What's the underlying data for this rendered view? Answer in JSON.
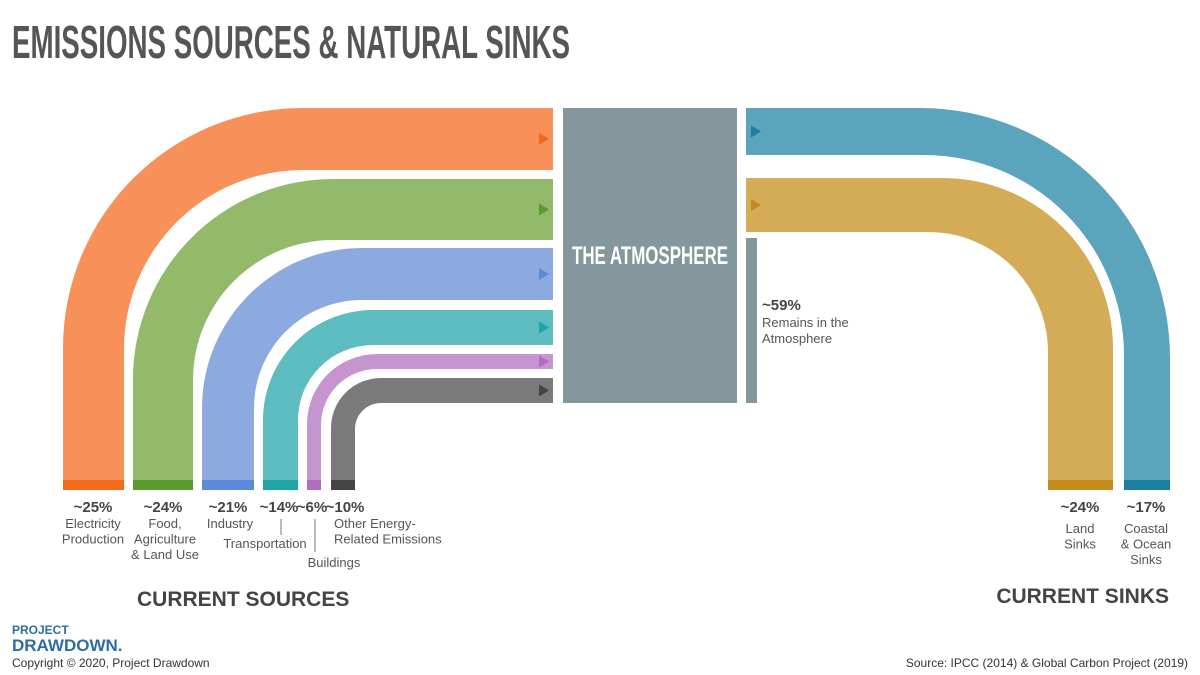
{
  "title": "EMISSIONS SOURCES & NATURAL SINKS",
  "atmosphere": "THE ATMOSPHERE",
  "remains": {
    "value": "~59%",
    "lines": [
      "Remains in the",
      "Atmosphere"
    ]
  },
  "sources": [
    {
      "value": "~25%",
      "lines": [
        "Electricity",
        "Production"
      ]
    },
    {
      "value": "~24%",
      "lines": [
        "Food,",
        "Agriculture",
        "& Land Use"
      ]
    },
    {
      "value": "~21%",
      "lines": [
        "Industry"
      ]
    },
    {
      "value": "~14%",
      "lines": [
        "Transportation"
      ]
    },
    {
      "value": "~6%",
      "lines": [
        "Buildings"
      ]
    },
    {
      "value": "~10%",
      "lines": [
        "Other Energy-",
        "Related Emissions"
      ]
    }
  ],
  "sinks": [
    {
      "value": "~24%",
      "lines": [
        "Land",
        "Sinks"
      ]
    },
    {
      "value": "~17%",
      "lines": [
        "Coastal",
        "& Ocean",
        "Sinks"
      ]
    }
  ],
  "sources_heading": "CURRENT SOURCES",
  "sinks_heading": "CURRENT SINKS",
  "logo": [
    "PROJECT",
    "DRAWDOWN."
  ],
  "copyright": "Copyright © 2020, Project Drawdown",
  "source_note": "Source: IPCC (2014) & Global Carbon Project (2019)"
}
